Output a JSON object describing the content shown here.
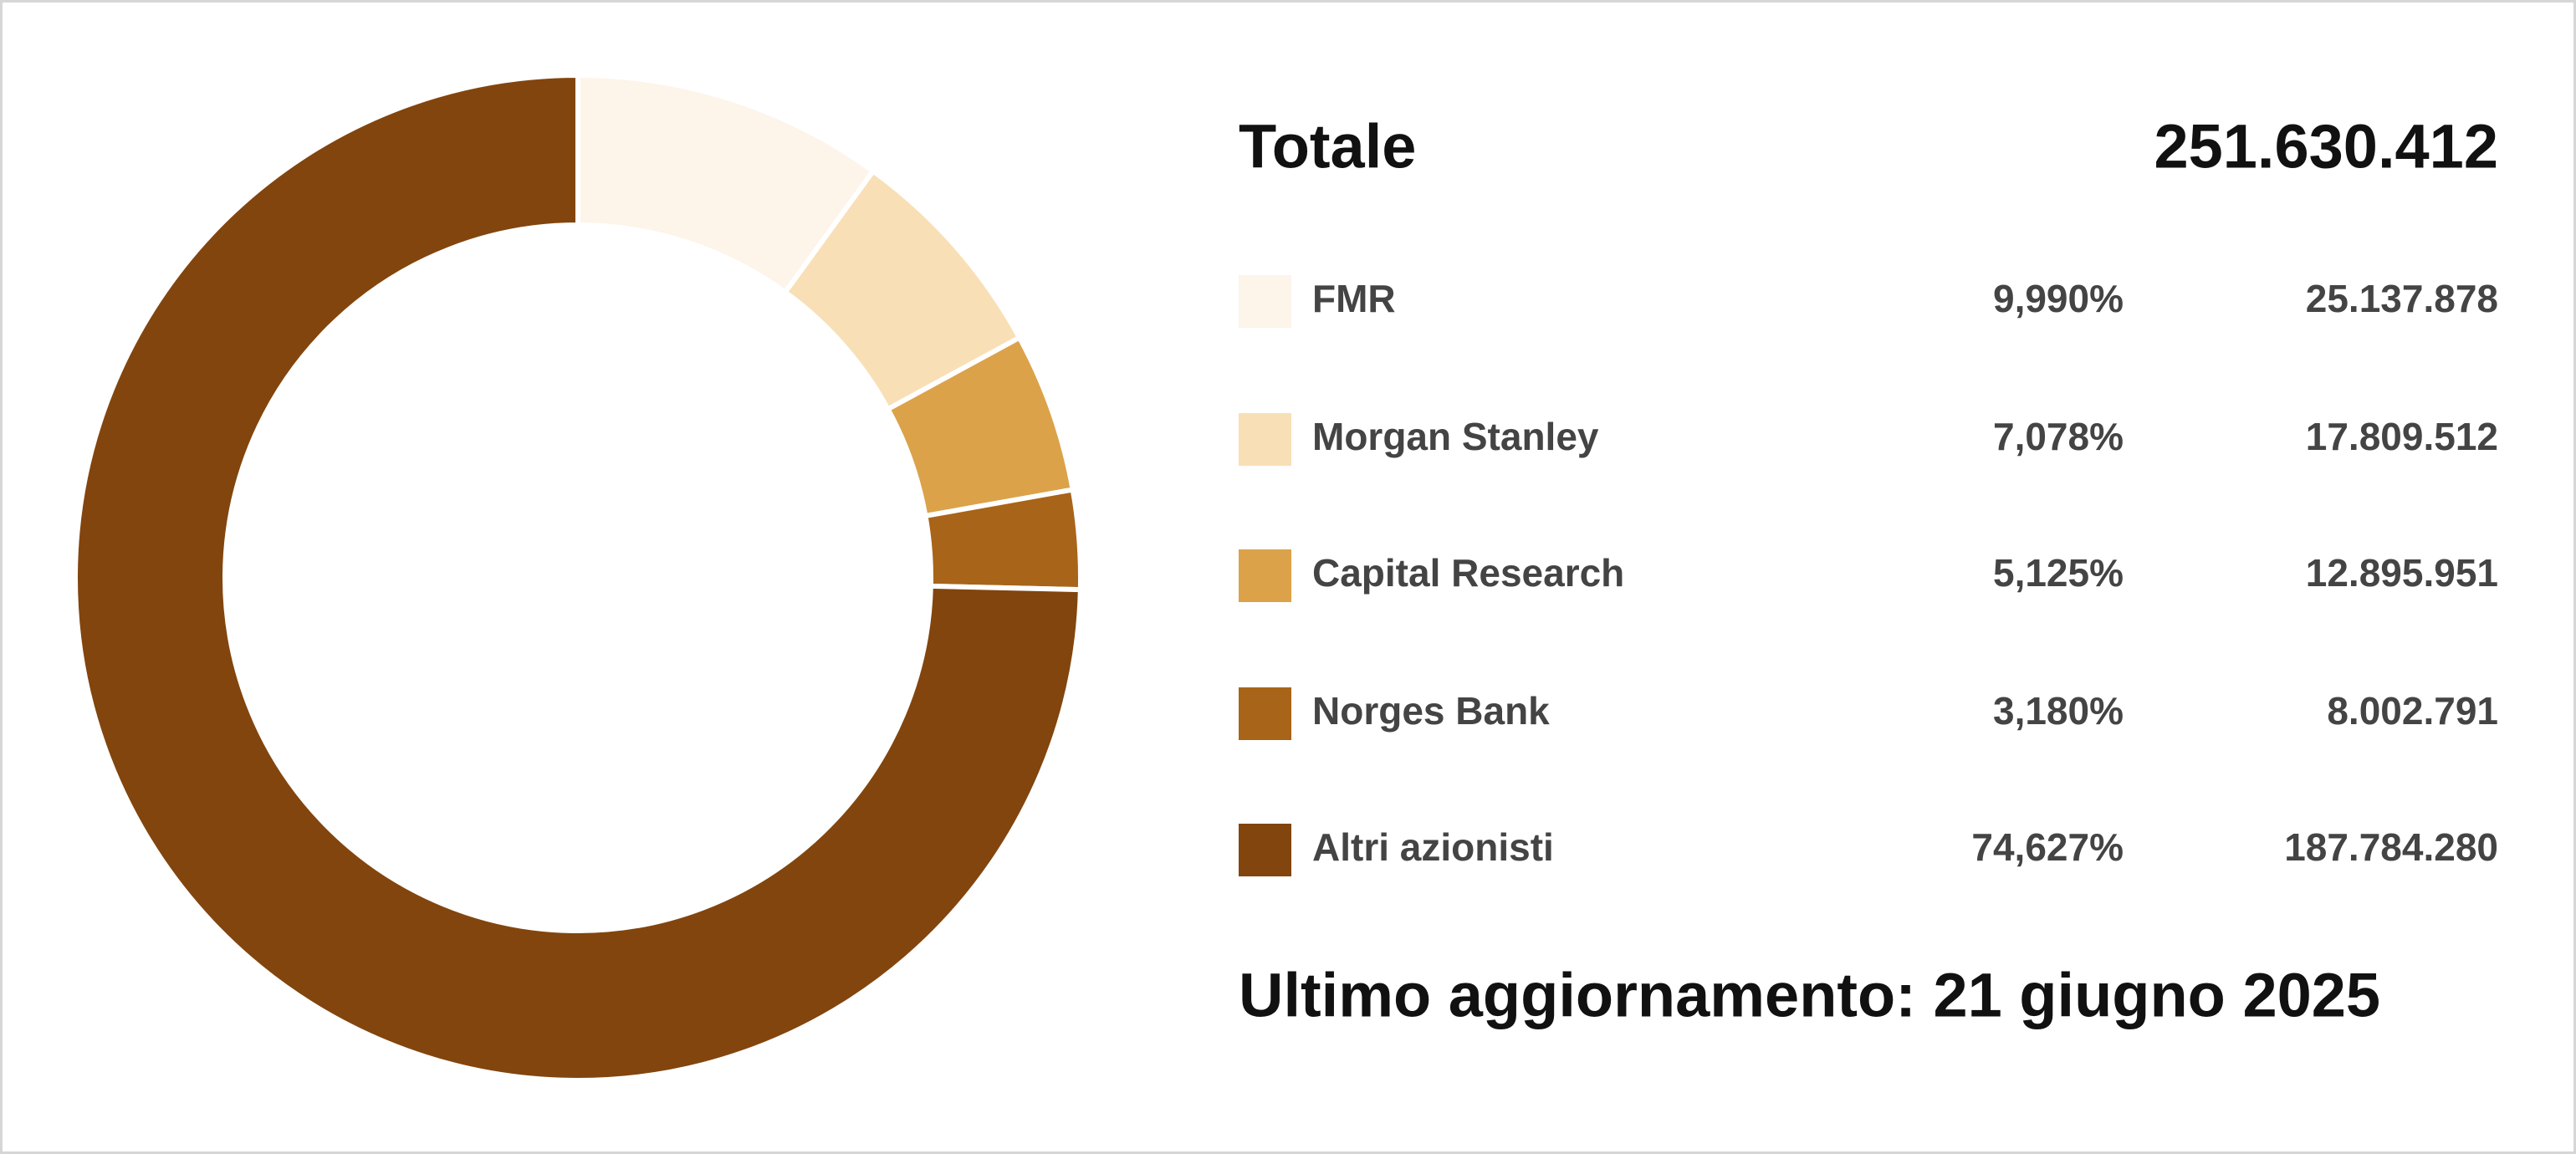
{
  "chart_data": {
    "type": "pie",
    "donut": true,
    "total_label": "Totale",
    "total": {
      "value": 251630412,
      "label": "251.630.412"
    },
    "categories": [
      "FMR",
      "Morgan Stanley",
      "Capital Research",
      "Norges Bank",
      "Altri azionisti"
    ],
    "values": [
      9.99,
      7.078,
      5.125,
      3.18,
      74.627
    ],
    "value_labels": [
      "9,990%",
      "7,078%",
      "5,125%",
      "3,180%",
      "74,627%"
    ],
    "shares": [
      25137878,
      17809512,
      12895951,
      8002791,
      187784280
    ],
    "share_labels": [
      "25.137.878",
      "17.809.512",
      "12.895.951",
      "8.002.791",
      "187.784.280"
    ],
    "colors": [
      "#fdf4ea",
      "#f9dfb6",
      "#dba24a",
      "#a86418",
      "#82450e"
    ],
    "footnote": "Ultimo aggiornamento: 21 giugno 2025"
  }
}
